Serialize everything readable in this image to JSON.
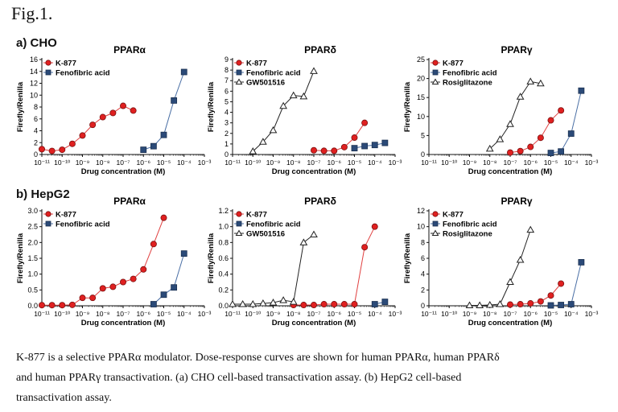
{
  "figure_title": "Fig.1.",
  "rows": [
    {
      "label": "a) CHO"
    },
    {
      "label": "b) HepG2"
    }
  ],
  "colors": {
    "k877": "#e02020",
    "k877_line": "#e04040",
    "fenofibric": "#2b4a78",
    "fenofibric_line": "#4a6fa5",
    "third": "#222222"
  },
  "caption": [
    "K-877 is a selective PPARα modulator. Dose-response curves are shown for human PPARα, human PPARδ",
    "and human PPARγ transactivation. (a) CHO cell-based transactivation assay. (b) HepG2 cell-based",
    "transactivation assay."
  ],
  "chart_data": [
    {
      "type": "line",
      "row": 0,
      "title": "PPARα",
      "xlabel": "Drug concentration (M)",
      "ylabel": "Firefly/Renilla",
      "xlim": [
        -11,
        -3
      ],
      "ylim": [
        0,
        16
      ],
      "yticks": [
        0,
        2,
        4,
        6,
        8,
        10,
        12,
        14,
        16
      ],
      "xtick_labels": [
        "10⁻¹¹",
        "10⁻¹⁰",
        "10⁻⁹",
        "10⁻⁸",
        "10⁻⁷",
        "10⁻⁶",
        "10⁻⁵",
        "10⁻⁴",
        "10⁻³"
      ],
      "series": [
        {
          "name": "K-877",
          "marker": "circle",
          "x": [
            -11,
            -10.5,
            -10,
            -9.5,
            -9,
            -8.5,
            -8,
            -7.5,
            -7,
            -6.5
          ],
          "y": [
            0.9,
            0.6,
            0.8,
            1.8,
            3.2,
            5.0,
            6.3,
            7.0,
            8.2,
            7.4
          ]
        },
        {
          "name": "Fenofibric acid",
          "marker": "square",
          "x": [
            -6,
            -5.5,
            -5,
            -4.5,
            -4
          ],
          "y": [
            0.8,
            1.4,
            3.3,
            9.1,
            13.9
          ]
        }
      ]
    },
    {
      "type": "line",
      "row": 0,
      "title": "PPARδ",
      "xlabel": "Drug concentration (M)",
      "ylabel": "Firefly/Renilla",
      "xlim": [
        -11,
        -3
      ],
      "ylim": [
        0,
        9
      ],
      "yticks": [
        0,
        1,
        2,
        3,
        4,
        5,
        6,
        7,
        8,
        9
      ],
      "xtick_labels": [
        "10⁻¹¹",
        "10⁻¹⁰",
        "10⁻⁹",
        "10⁻⁸",
        "10⁻⁷",
        "10⁻⁶",
        "10⁻⁵",
        "10⁻⁴",
        "10⁻³"
      ],
      "series": [
        {
          "name": "K-877",
          "marker": "circle",
          "x": [
            -7,
            -6.5,
            -6,
            -5.5,
            -5,
            -4.5
          ],
          "y": [
            0.4,
            0.35,
            0.35,
            0.7,
            1.6,
            3.0
          ]
        },
        {
          "name": "Fenofibric acid",
          "marker": "square",
          "x": [
            -5,
            -4.5,
            -4,
            -3.5
          ],
          "y": [
            0.6,
            0.8,
            0.9,
            1.1
          ]
        },
        {
          "name": "GW501516",
          "marker": "triangle",
          "x": [
            -10,
            -9.5,
            -9,
            -8.5,
            -8,
            -7.5,
            -7
          ],
          "y": [
            0.3,
            1.2,
            2.3,
            4.6,
            5.6,
            5.5,
            7.9
          ]
        }
      ]
    },
    {
      "type": "line",
      "row": 0,
      "title": "PPARγ",
      "xlabel": "Drug concentration (M)",
      "ylabel": "Firefly/Renilla",
      "xlim": [
        -11,
        -3
      ],
      "ylim": [
        0,
        25
      ],
      "yticks": [
        0,
        5,
        10,
        15,
        20,
        25
      ],
      "xtick_labels": [
        "10⁻¹¹",
        "10⁻¹⁰",
        "10⁻⁹",
        "10⁻⁸",
        "10⁻⁷",
        "10⁻⁶",
        "10⁻⁵",
        "10⁻⁴",
        "10⁻³"
      ],
      "series": [
        {
          "name": "K-877",
          "marker": "circle",
          "x": [
            -7,
            -6.5,
            -6,
            -5.5,
            -5,
            -4.5
          ],
          "y": [
            0.5,
            0.9,
            2.0,
            4.4,
            9.0,
            11.6
          ]
        },
        {
          "name": "Fenofibric acid",
          "marker": "square",
          "x": [
            -5,
            -4.5,
            -4,
            -3.5
          ],
          "y": [
            0.4,
            0.8,
            5.5,
            16.8
          ]
        },
        {
          "name": "Rosiglitazone",
          "marker": "triangle",
          "x": [
            -8,
            -7.5,
            -7,
            -6.5,
            -6,
            -5.5
          ],
          "y": [
            1.5,
            4.0,
            8.0,
            15.2,
            19.2,
            18.7
          ]
        }
      ]
    },
    {
      "type": "line",
      "row": 1,
      "title": "PPARα",
      "xlabel": "Drug concentration (M)",
      "ylabel": "Firefly/Renilla",
      "xlim": [
        -11,
        -3
      ],
      "ylim": [
        0,
        3.0
      ],
      "yticks": [
        0,
        0.5,
        1.0,
        1.5,
        2.0,
        2.5,
        3.0
      ],
      "xtick_labels": [
        "10⁻¹¹",
        "10⁻¹⁰",
        "10⁻⁹",
        "10⁻⁸",
        "10⁻⁷",
        "10⁻⁶",
        "10⁻⁵",
        "10⁻⁴",
        "10⁻³"
      ],
      "series": [
        {
          "name": "K-877",
          "marker": "circle",
          "x": [
            -11,
            -10.5,
            -10,
            -9.5,
            -9,
            -8.5,
            -8,
            -7.5,
            -7,
            -6.5,
            -6,
            -5.5,
            -5
          ],
          "y": [
            0.02,
            0.02,
            0.02,
            0.03,
            0.25,
            0.25,
            0.55,
            0.6,
            0.75,
            0.85,
            1.15,
            1.95,
            2.78
          ]
        },
        {
          "name": "Fenofibric acid",
          "marker": "square",
          "x": [
            -5.5,
            -5,
            -4.5,
            -4
          ],
          "y": [
            0.05,
            0.35,
            0.58,
            1.65
          ]
        }
      ]
    },
    {
      "type": "line",
      "row": 1,
      "title": "PPARδ",
      "xlabel": "Drug concentration (M)",
      "ylabel": "Firefly/Renilla",
      "xlim": [
        -11,
        -3
      ],
      "ylim": [
        0,
        1.2
      ],
      "yticks": [
        0,
        0.2,
        0.4,
        0.6,
        0.8,
        1.0,
        1.2
      ],
      "xtick_labels": [
        "10⁻¹¹",
        "10⁻¹⁰",
        "10⁻⁹",
        "10⁻⁸",
        "10⁻⁷",
        "10⁻⁶",
        "10⁻⁵",
        "10⁻⁴",
        "10⁻³"
      ],
      "series": [
        {
          "name": "K-877",
          "marker": "circle",
          "x": [
            -8,
            -7.5,
            -7,
            -6.5,
            -6,
            -5.5,
            -5,
            -4.5,
            -4
          ],
          "y": [
            0.01,
            0.01,
            0.01,
            0.02,
            0.02,
            0.02,
            0.02,
            0.74,
            1.0
          ]
        },
        {
          "name": "Fenofibric acid",
          "marker": "square",
          "x": [
            -4,
            -3.5
          ],
          "y": [
            0.02,
            0.05
          ]
        },
        {
          "name": "GW501516",
          "marker": "triangle",
          "x": [
            -11,
            -10.5,
            -10,
            -9.5,
            -9,
            -8.5,
            -8,
            -7.5,
            -7
          ],
          "y": [
            0.02,
            0.02,
            0.02,
            0.03,
            0.04,
            0.07,
            0.05,
            0.8,
            0.9
          ]
        }
      ]
    },
    {
      "type": "line",
      "row": 1,
      "title": "PPARγ",
      "xlabel": "Drug concentration (M)",
      "ylabel": "Firefly/Renilla",
      "xlim": [
        -11,
        -3
      ],
      "ylim": [
        0,
        12
      ],
      "yticks": [
        0,
        2,
        4,
        6,
        8,
        10,
        12
      ],
      "xtick_labels": [
        "10⁻¹¹",
        "10⁻¹⁰",
        "10⁻⁹",
        "10⁻⁸",
        "10⁻⁷",
        "10⁻⁶",
        "10⁻⁵",
        "10⁻⁴",
        "10⁻³"
      ],
      "series": [
        {
          "name": "K-877",
          "marker": "circle",
          "x": [
            -7,
            -6.5,
            -6,
            -5.5,
            -5,
            -4.5
          ],
          "y": [
            0.15,
            0.2,
            0.3,
            0.55,
            1.3,
            2.8
          ]
        },
        {
          "name": "Fenofibric acid",
          "marker": "square",
          "x": [
            -5,
            -4.5,
            -4,
            -3.5
          ],
          "y": [
            0.05,
            0.1,
            0.2,
            5.5
          ]
        },
        {
          "name": "Rosiglitazone",
          "marker": "triangle",
          "x": [
            -9,
            -8.5,
            -8,
            -7.5,
            -7,
            -6.5,
            -6
          ],
          "y": [
            0.05,
            0.05,
            0.1,
            0.2,
            3.0,
            5.8,
            9.6
          ]
        }
      ]
    }
  ]
}
